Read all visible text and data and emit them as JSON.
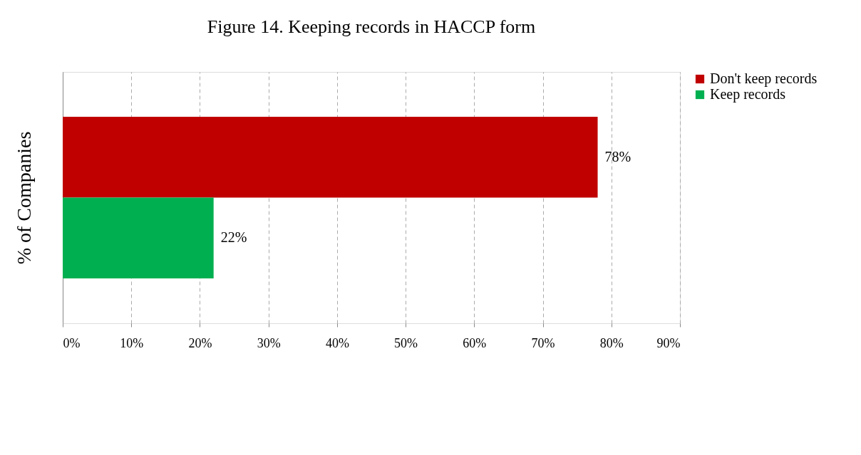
{
  "chart_data": {
    "type": "bar",
    "orientation": "horizontal",
    "title": "Figure 14. Keeping records in HACCP form",
    "ylabel": "% of Companies",
    "categories": [
      null
    ],
    "series": [
      {
        "name": "Don't keep records",
        "color": "#c00000",
        "values": [
          78
        ],
        "value_labels": [
          "78%"
        ]
      },
      {
        "name": "Keep records",
        "color": "#00b050",
        "values": [
          22
        ],
        "value_labels": [
          "22%"
        ]
      }
    ],
    "xlim": [
      0,
      90
    ],
    "xticks": [
      {
        "value": 0,
        "label": "0%"
      },
      {
        "value": 10,
        "label": "10%"
      },
      {
        "value": 20,
        "label": "20%"
      },
      {
        "value": 30,
        "label": "30%"
      },
      {
        "value": 40,
        "label": "40%"
      },
      {
        "value": 50,
        "label": "50%"
      },
      {
        "value": 60,
        "label": "60%"
      },
      {
        "value": 70,
        "label": "70%"
      },
      {
        "value": 80,
        "label": "80%"
      },
      {
        "value": 90,
        "label": "90%"
      }
    ],
    "grid": "x",
    "legend": "right"
  }
}
